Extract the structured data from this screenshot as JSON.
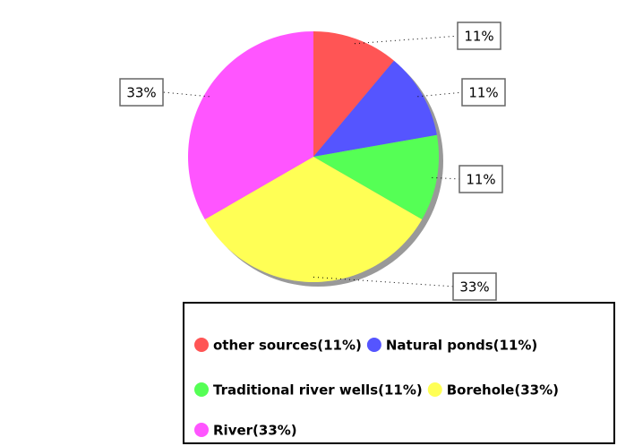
{
  "chart_data": {
    "type": "pie",
    "categories": [
      "other sources(11%)",
      "Natural ponds(11%)",
      "Traditional river wells(11%)",
      "Borehole(33%)",
      "River(33%)"
    ],
    "values": [
      11,
      11,
      11,
      33,
      33
    ],
    "value_labels": [
      "11%",
      "11%",
      "11%",
      "33%",
      "33%"
    ],
    "colors": [
      "#ff5555",
      "#5555ff",
      "#55ff55",
      "#ffff55",
      "#ff55ff"
    ]
  }
}
